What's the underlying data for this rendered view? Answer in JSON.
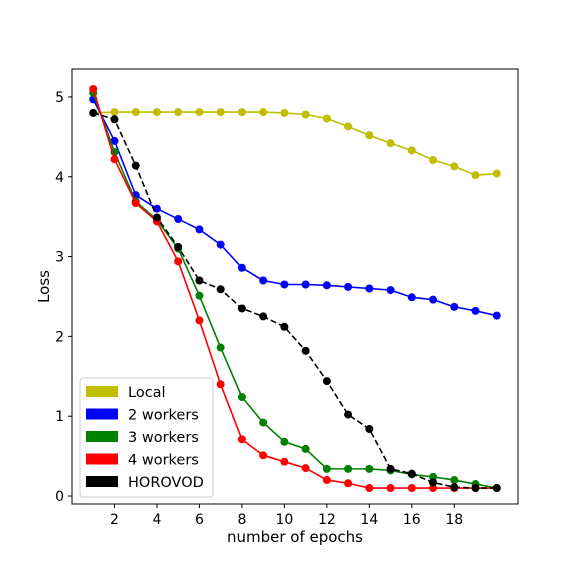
{
  "chart_data": {
    "type": "line",
    "xlabel": "number of epochs",
    "ylabel": "Loss",
    "xlim": [
      0,
      21
    ],
    "ylim": [
      -0.1,
      5.35
    ],
    "xticks": [
      2,
      4,
      6,
      8,
      10,
      12,
      14,
      16,
      18
    ],
    "yticks": [
      0,
      1,
      2,
      3,
      4,
      5
    ],
    "grid": false,
    "legend_position": "bottom-left",
    "x": [
      1,
      2,
      3,
      4,
      5,
      6,
      7,
      8,
      9,
      10,
      11,
      12,
      13,
      14,
      15,
      16,
      17,
      18,
      19,
      20
    ],
    "series": [
      {
        "name": "Local",
        "color": "#bfbf00",
        "dashed": false,
        "values": [
          4.8,
          4.81,
          4.81,
          4.81,
          4.81,
          4.81,
          4.81,
          4.81,
          4.81,
          4.8,
          4.78,
          4.73,
          4.63,
          4.52,
          4.42,
          4.33,
          4.21,
          4.13,
          4.02,
          4.04
        ]
      },
      {
        "name": "2 workers",
        "color": "#0000ff",
        "dashed": false,
        "values": [
          4.97,
          4.45,
          3.77,
          3.6,
          3.47,
          3.34,
          3.15,
          2.86,
          2.7,
          2.65,
          2.65,
          2.64,
          2.62,
          2.6,
          2.58,
          2.49,
          2.46,
          2.37,
          2.32,
          2.26
        ]
      },
      {
        "name": "3 workers",
        "color": "#008000",
        "dashed": false,
        "values": [
          5.05,
          4.31,
          3.69,
          3.46,
          3.1,
          2.51,
          1.86,
          1.24,
          0.92,
          0.68,
          0.59,
          0.34,
          0.34,
          0.34,
          0.32,
          0.27,
          0.24,
          0.2,
          0.15,
          0.1
        ]
      },
      {
        "name": "4 workers",
        "color": "#ff0000",
        "dashed": false,
        "values": [
          5.1,
          4.22,
          3.67,
          3.44,
          2.94,
          2.2,
          1.4,
          0.71,
          0.51,
          0.43,
          0.35,
          0.2,
          0.16,
          0.1,
          0.1,
          0.1,
          0.1,
          0.1,
          0.1,
          0.1
        ]
      },
      {
        "name": "HOROVOD",
        "color": "#000000",
        "dashed": true,
        "values": [
          4.8,
          4.72,
          4.14,
          3.49,
          3.12,
          2.7,
          2.59,
          2.35,
          2.25,
          2.12,
          1.82,
          1.44,
          1.02,
          0.84,
          0.34,
          0.28,
          0.17,
          0.11,
          0.1,
          0.1
        ]
      }
    ]
  }
}
